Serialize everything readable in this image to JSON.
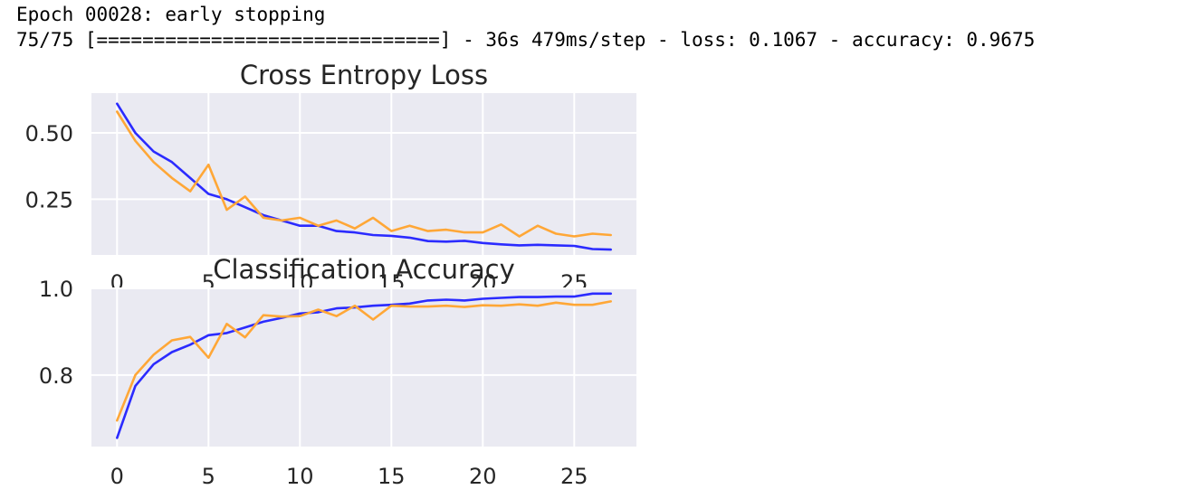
{
  "console": {
    "line1": "Epoch 00028: early stopping",
    "line2": "75/75 [==============================] - 36s 479ms/step - loss: 0.1067 - accuracy: 0.9675"
  },
  "colors": {
    "train": "#2b2bff",
    "validation": "#ffa737",
    "background": "#eaeaf2"
  },
  "chart_data": [
    {
      "type": "line",
      "title": "Cross Entropy Loss",
      "xlabel": "",
      "ylabel": "",
      "xlim": [
        -1.4,
        28.4
      ],
      "ylim": [
        0.04,
        0.65
      ],
      "xticks": [
        0,
        5,
        10,
        15,
        20,
        25
      ],
      "yticks": [
        0.25,
        0.5
      ],
      "ytick_labels": [
        "0.25",
        "0.50"
      ],
      "grid": true,
      "x": [
        0,
        1,
        2,
        3,
        4,
        5,
        6,
        7,
        8,
        9,
        10,
        11,
        12,
        13,
        14,
        15,
        16,
        17,
        18,
        19,
        20,
        21,
        22,
        23,
        24,
        25,
        26,
        27
      ],
      "series": [
        {
          "color": "#2b2bff",
          "values": [
            0.61,
            0.5,
            0.43,
            0.39,
            0.33,
            0.27,
            0.25,
            0.22,
            0.19,
            0.17,
            0.15,
            0.15,
            0.13,
            0.125,
            0.115,
            0.112,
            0.105,
            0.092,
            0.09,
            0.093,
            0.085,
            0.08,
            0.076,
            0.078,
            0.076,
            0.074,
            0.062,
            0.06
          ]
        },
        {
          "color": "#ffa737",
          "values": [
            0.58,
            0.47,
            0.39,
            0.33,
            0.28,
            0.38,
            0.21,
            0.26,
            0.18,
            0.17,
            0.18,
            0.15,
            0.17,
            0.14,
            0.18,
            0.13,
            0.15,
            0.13,
            0.135,
            0.125,
            0.125,
            0.155,
            0.11,
            0.15,
            0.12,
            0.11,
            0.12,
            0.115
          ]
        }
      ]
    },
    {
      "type": "line",
      "title": "Classification Accuracy",
      "xlabel": "",
      "ylabel": "",
      "xlim": [
        -1.4,
        28.4
      ],
      "ylim": [
        0.635,
        1.0
      ],
      "xticks": [
        0,
        5,
        10,
        15,
        20,
        25
      ],
      "yticks": [
        0.8,
        1.0
      ],
      "ytick_labels": [
        "0.8",
        "1.0"
      ],
      "grid": true,
      "x": [
        0,
        1,
        2,
        3,
        4,
        5,
        6,
        7,
        8,
        9,
        10,
        11,
        12,
        13,
        14,
        15,
        16,
        17,
        18,
        19,
        20,
        21,
        22,
        23,
        24,
        25,
        26,
        27
      ],
      "series": [
        {
          "color": "#2b2bff",
          "values": [
            0.655,
            0.775,
            0.825,
            0.853,
            0.87,
            0.892,
            0.897,
            0.91,
            0.923,
            0.932,
            0.942,
            0.945,
            0.954,
            0.956,
            0.96,
            0.962,
            0.965,
            0.972,
            0.974,
            0.972,
            0.976,
            0.978,
            0.98,
            0.98,
            0.981,
            0.981,
            0.988,
            0.988
          ]
        },
        {
          "color": "#ffa737",
          "values": [
            0.695,
            0.8,
            0.847,
            0.88,
            0.888,
            0.84,
            0.918,
            0.887,
            0.938,
            0.935,
            0.936,
            0.951,
            0.936,
            0.96,
            0.928,
            0.96,
            0.958,
            0.958,
            0.96,
            0.957,
            0.961,
            0.96,
            0.963,
            0.96,
            0.967,
            0.962,
            0.962,
            0.97
          ]
        }
      ]
    }
  ]
}
